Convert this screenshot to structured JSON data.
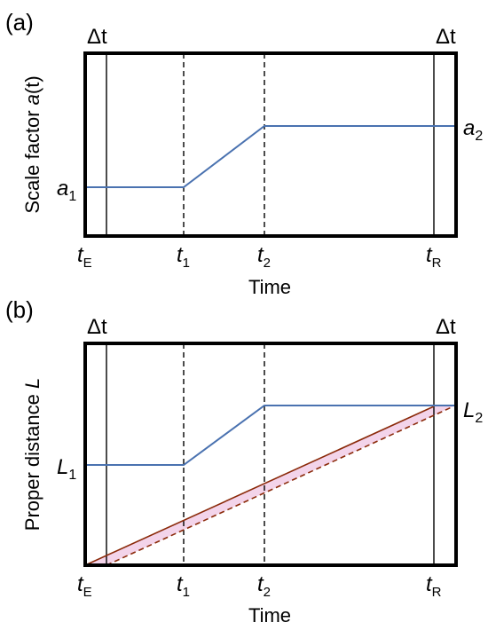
{
  "panel_a": {
    "tag": "(a)",
    "delta_left": "Δt",
    "delta_right": "Δt",
    "ylabel_text": "Scale factor ",
    "ylabel_var": "a",
    "ylabel_tail": "(t)",
    "a1_var": "a",
    "a1_sub": "1",
    "a2_var": "a",
    "a2_sub": "2",
    "xlabel": "Time",
    "ticks": [
      {
        "var": "t",
        "sub": "E"
      },
      {
        "var": "t",
        "sub": "1"
      },
      {
        "var": "t",
        "sub": "2"
      },
      {
        "var": "t",
        "sub": "R"
      }
    ]
  },
  "panel_b": {
    "tag": "(b)",
    "delta_left": "Δt",
    "delta_right": "Δt",
    "ylabel_text": "Proper distance  ",
    "ylabel_var": "L",
    "L1_var": "L",
    "L1_sub": "1",
    "L2_var": "L",
    "L2_sub": "2",
    "xlabel": "Time",
    "ticks": [
      {
        "var": "t",
        "sub": "E"
      },
      {
        "var": "t",
        "sub": "1"
      },
      {
        "var": "t",
        "sub": "2"
      },
      {
        "var": "t",
        "sub": "R"
      }
    ]
  },
  "colors": {
    "blue": "#4a72b0",
    "brown": "#8b2a0a",
    "shade": "#f3d4ea",
    "frame": "#000000"
  }
}
